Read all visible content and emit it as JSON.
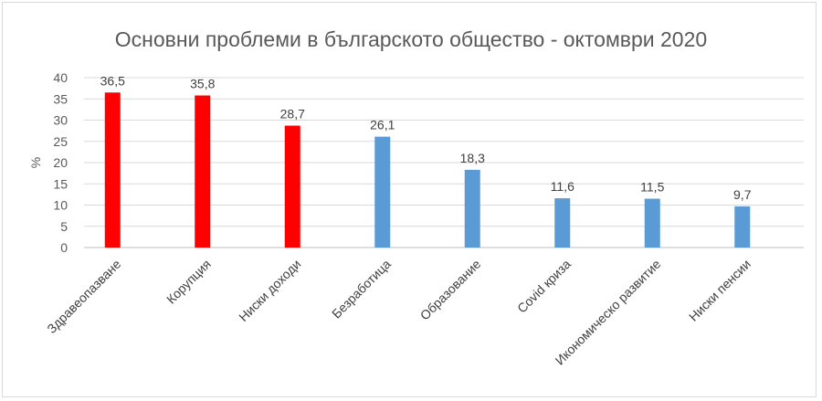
{
  "chart_data": {
    "type": "bar",
    "title": "Основни проблеми в българското общество - октомври 2020",
    "ylabel": "%",
    "xlabel": "",
    "ylim": [
      0,
      40
    ],
    "yticks": [
      0,
      5,
      10,
      15,
      20,
      25,
      30,
      35,
      40
    ],
    "grid": true,
    "legend": "none",
    "categories": [
      "Здравеопазване",
      "Корупция",
      "Ниски доходи",
      "Безработица",
      "Образование",
      "Covid криза",
      "Икономическо развитие",
      "Ниски пенсии"
    ],
    "values": [
      36.5,
      35.8,
      28.7,
      26.1,
      18.3,
      11.6,
      11.5,
      9.7
    ],
    "value_labels": [
      "36,5",
      "35,8",
      "28,7",
      "26,1",
      "18,3",
      "11,6",
      "11,5",
      "9,7"
    ],
    "colors": [
      "#ff0000",
      "#ff0000",
      "#ff0000",
      "#5b9bd5",
      "#5b9bd5",
      "#5b9bd5",
      "#5b9bd5",
      "#5b9bd5"
    ]
  }
}
